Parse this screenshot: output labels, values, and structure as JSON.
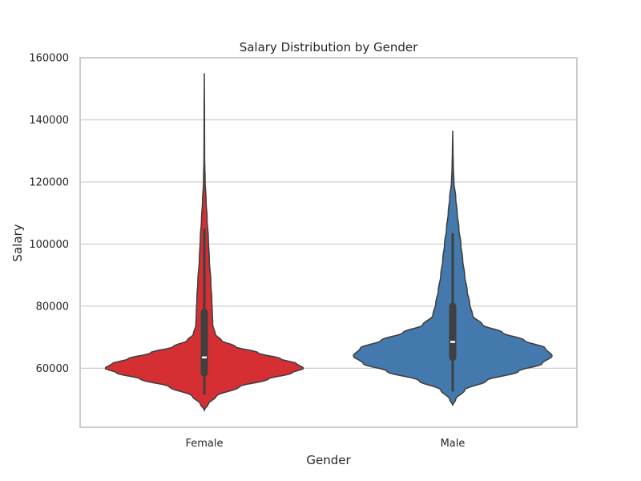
{
  "chart_data": {
    "type": "violin",
    "title": "Salary Distribution by Gender",
    "xlabel": "Gender",
    "ylabel": "Salary",
    "categories": [
      "Female",
      "Male"
    ],
    "ylim": [
      41000,
      160000
    ],
    "yticks": [
      60000,
      80000,
      100000,
      120000,
      140000,
      160000
    ],
    "ytick_labels": [
      "60000",
      "80000",
      "100000",
      "120000",
      "140000",
      "160000"
    ],
    "grid": true,
    "series": [
      {
        "category": "Female",
        "color": "#d62f33",
        "kde_min": 46500,
        "kde_max": 155000,
        "density_profile": [
          [
            46500,
            0.0
          ],
          [
            48500,
            0.04
          ],
          [
            51000,
            0.12
          ],
          [
            54000,
            0.35
          ],
          [
            56500,
            0.64
          ],
          [
            58500,
            0.88
          ],
          [
            60000,
            1.0
          ],
          [
            61500,
            0.93
          ],
          [
            63000,
            0.77
          ],
          [
            65000,
            0.54
          ],
          [
            67000,
            0.31
          ],
          [
            69000,
            0.17
          ],
          [
            71000,
            0.11
          ],
          [
            74000,
            0.085
          ],
          [
            78000,
            0.08
          ],
          [
            82000,
            0.075
          ],
          [
            88000,
            0.065
          ],
          [
            95000,
            0.05
          ],
          [
            102000,
            0.04
          ],
          [
            108000,
            0.028
          ],
          [
            114000,
            0.018
          ],
          [
            120000,
            0.008
          ],
          [
            128000,
            0.003
          ],
          [
            140000,
            0.002
          ],
          [
            155000,
            0.0
          ]
        ],
        "whisker_low": 51500,
        "q1": 58500,
        "median": 63500,
        "q3": 78000,
        "whisker_high": 105000
      },
      {
        "category": "Male",
        "color": "#4479ad",
        "kde_min": 48000,
        "kde_max": 136500,
        "density_profile": [
          [
            48000,
            0.0
          ],
          [
            50000,
            0.03
          ],
          [
            53000,
            0.12
          ],
          [
            56000,
            0.34
          ],
          [
            59000,
            0.66
          ],
          [
            61500,
            0.9
          ],
          [
            64000,
            1.0
          ],
          [
            66500,
            0.93
          ],
          [
            69000,
            0.72
          ],
          [
            71500,
            0.5
          ],
          [
            74000,
            0.3
          ],
          [
            77000,
            0.2
          ],
          [
            81000,
            0.17
          ],
          [
            85000,
            0.145
          ],
          [
            90000,
            0.12
          ],
          [
            95000,
            0.1
          ],
          [
            100000,
            0.082
          ],
          [
            105000,
            0.062
          ],
          [
            110000,
            0.045
          ],
          [
            115000,
            0.03
          ],
          [
            120000,
            0.012
          ],
          [
            125000,
            0.006
          ],
          [
            130000,
            0.003
          ],
          [
            136500,
            0.0
          ]
        ],
        "whisker_low": 52500,
        "q1": 63500,
        "median": 68500,
        "q3": 80000,
        "whisker_high": 103500
      }
    ]
  }
}
